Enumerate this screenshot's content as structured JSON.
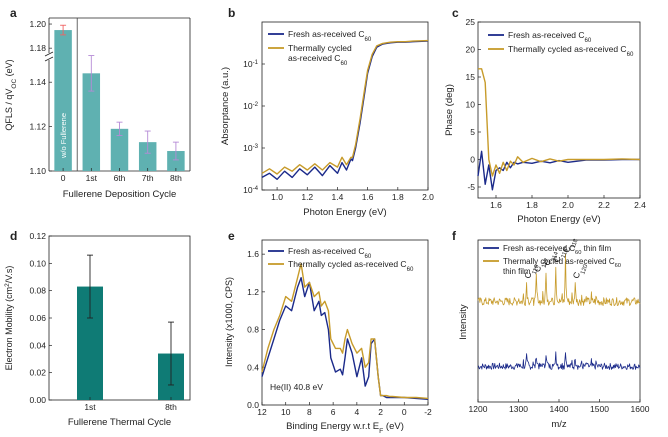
{
  "chart_data": [
    {
      "panel": "a",
      "type": "bar",
      "xlabel": "Fullerene Deposition Cycle",
      "ylabel": "QFLS / qV",
      "ylabel_sub": "OC",
      "ylabel_unit": " (eV)",
      "categories": [
        "0",
        "1st",
        "6th",
        "7th",
        "8th"
      ],
      "values": [
        1.195,
        1.144,
        1.119,
        1.113,
        1.109
      ],
      "errors": [
        0.004,
        0.008,
        0.003,
        0.005,
        0.004
      ],
      "yticks_upper": [
        "1.20",
        "1.18"
      ],
      "yticks_lower": [
        "1.14",
        "1.12",
        "1.10"
      ],
      "ylim_lower": [
        1.1,
        1.15
      ],
      "ylim_upper": [
        1.176,
        1.205
      ],
      "bar_annotation": "w/o Fullerene",
      "colors": {
        "bar": "#5fb1b1",
        "error": "#b58ad6",
        "error_first": "#f06363"
      }
    },
    {
      "panel": "b",
      "type": "line",
      "xlabel": "Photon Energy (eV)",
      "ylabel": "Absorptance (a.u.)",
      "yscale": "log",
      "xlim": [
        0.9,
        2.0
      ],
      "ylim": [
        0.0001,
        1
      ],
      "xticks": [
        "1.0",
        "1.2",
        "1.4",
        "1.6",
        "1.8",
        "2.0"
      ],
      "ytick_base": "10",
      "ytick_exponents": [
        "-4",
        "-3",
        "-2",
        "-1"
      ],
      "series": [
        {
          "name": "Fresh as-received C",
          "name_sub": "60",
          "color": "#1b2a8a",
          "x": [
            0.9,
            0.95,
            1.0,
            1.05,
            1.1,
            1.15,
            1.2,
            1.25,
            1.3,
            1.35,
            1.4,
            1.43,
            1.46,
            1.49,
            1.5,
            1.52,
            1.55,
            1.58,
            1.6,
            1.63,
            1.66,
            1.7,
            1.75,
            1.8,
            1.85,
            1.9,
            2.0
          ],
          "y": [
            0.0002,
            0.00025,
            0.00018,
            0.00028,
            0.0002,
            0.00032,
            0.00023,
            0.00035,
            0.00022,
            0.00038,
            0.00025,
            0.00045,
            0.0003,
            0.00055,
            0.0005,
            0.001,
            0.004,
            0.02,
            0.06,
            0.15,
            0.25,
            0.3,
            0.32,
            0.33,
            0.33,
            0.34,
            0.35
          ]
        },
        {
          "name": "Thermally cycled",
          "name_line2": "as-received C",
          "name_sub": "60",
          "color": "#c79b2a",
          "x": [
            0.9,
            0.95,
            1.0,
            1.05,
            1.1,
            1.15,
            1.2,
            1.25,
            1.3,
            1.35,
            1.4,
            1.43,
            1.46,
            1.49,
            1.5,
            1.52,
            1.55,
            1.58,
            1.6,
            1.63,
            1.66,
            1.7,
            1.75,
            1.8,
            1.85,
            1.9,
            2.0
          ],
          "y": [
            0.00025,
            0.00032,
            0.00024,
            0.00035,
            0.00028,
            0.0004,
            0.0003,
            0.00042,
            0.0003,
            0.00045,
            0.00035,
            0.0006,
            0.0004,
            0.0006,
            0.0006,
            0.0012,
            0.005,
            0.025,
            0.07,
            0.17,
            0.27,
            0.31,
            0.33,
            0.34,
            0.34,
            0.35,
            0.36
          ]
        }
      ]
    },
    {
      "panel": "c",
      "type": "line",
      "xlabel": "Photon Energy (eV)",
      "ylabel": "Phase (deg)",
      "xlim": [
        1.5,
        2.4
      ],
      "ylim": [
        -7,
        25
      ],
      "xticks": [
        "1.6",
        "1.8",
        "2.0",
        "2.2",
        "2.4"
      ],
      "yticks": [
        "-5",
        "0",
        "5",
        "10",
        "15",
        "20",
        "25"
      ],
      "series": [
        {
          "name": "Fresh as-received C",
          "name_sub": "60",
          "color": "#1b2a8a",
          "x": [
            1.5,
            1.52,
            1.54,
            1.56,
            1.58,
            1.6,
            1.62,
            1.64,
            1.66,
            1.68,
            1.7,
            1.72,
            1.75,
            1.8,
            1.85,
            1.9,
            1.95,
            2.0,
            2.1,
            2.2,
            2.3,
            2.4
          ],
          "y": [
            -3,
            1.5,
            -4.5,
            -1,
            -5.5,
            -2,
            -1.5,
            -2,
            -0.5,
            -1.5,
            -0.5,
            -0.8,
            -0.5,
            -0.7,
            -0.3,
            -0.6,
            -0.2,
            -0.5,
            -0.1,
            -0.1,
            0,
            0
          ]
        },
        {
          "name": "Thermally cycled as-received C",
          "name_sub": "60",
          "color": "#c79b2a",
          "x": [
            1.5,
            1.52,
            1.54,
            1.56,
            1.58,
            1.6,
            1.62,
            1.64,
            1.66,
            1.68,
            1.7,
            1.72,
            1.75,
            1.8,
            1.85,
            1.9,
            1.95,
            2.0,
            2.1,
            2.2,
            2.3,
            2.4
          ],
          "y": [
            16.5,
            16.5,
            14,
            0,
            -3,
            -1,
            -2.5,
            -0.5,
            -2,
            -0.3,
            -1,
            0.5,
            -0.5,
            0.2,
            -0.4,
            0.1,
            -0.3,
            0,
            0,
            0,
            0.1,
            0
          ]
        }
      ]
    },
    {
      "panel": "d",
      "type": "bar",
      "xlabel": "Fullerene Thermal Cycle",
      "ylabel": "Electron Mobility (cm",
      "ylabel_sup": "2",
      "ylabel_unit": "/V.s)",
      "categories": [
        "1st",
        "8th"
      ],
      "values": [
        0.083,
        0.034
      ],
      "errors": [
        0.023,
        0.023
      ],
      "ylim": [
        0,
        0.12
      ],
      "yticks": [
        "0.00",
        "0.02",
        "0.04",
        "0.06",
        "0.08",
        "0.10",
        "0.12"
      ],
      "colors": {
        "bar": "#0f7b75",
        "error": "#222222"
      }
    },
    {
      "panel": "e",
      "type": "line",
      "xlabel": "Binding Energy w.r.t E",
      "xlabel_sub": "F",
      "xlabel_unit": " (eV)",
      "ylabel": "Intensity (x1000, CPS)",
      "xlim": [
        12,
        -2
      ],
      "ylim": [
        0,
        1.75
      ],
      "xticks": [
        "12",
        "10",
        "8",
        "6",
        "4",
        "2",
        "0",
        "-2"
      ],
      "yticks": [
        "0.0",
        "0.4",
        "0.8",
        "1.2",
        "1.6"
      ],
      "annotation": "He(II) 40.8 eV",
      "series": [
        {
          "name": "Fresh as-received C",
          "name_sub": "60",
          "color": "#1b2a8a",
          "x": [
            12,
            11.5,
            11,
            10.5,
            10,
            9.5,
            9,
            8.7,
            8.4,
            8,
            7.6,
            7.2,
            7,
            6.7,
            6.4,
            6.2,
            5.8,
            5.4,
            5.2,
            5,
            4.8,
            4.4,
            4,
            3.6,
            3.3,
            3,
            2.8,
            2.5,
            2.2,
            2,
            1.8,
            1.5,
            1.2,
            1,
            0,
            -1,
            -2
          ],
          "y": [
            0.3,
            0.5,
            0.7,
            0.9,
            1.05,
            1.0,
            1.25,
            1.35,
            1.15,
            1.3,
            1.0,
            1.1,
            0.95,
            0.98,
            0.8,
            0.5,
            0.35,
            0.38,
            0.32,
            0.5,
            0.7,
            0.55,
            0.3,
            0.5,
            0.2,
            0.3,
            0.65,
            0.7,
            0.3,
            0.1,
            0.1,
            0.08,
            0.08,
            0.08,
            0.08,
            0.07,
            0.06
          ]
        },
        {
          "name": "Thermally cycled as-received C",
          "name_sub": "60",
          "color": "#c79b2a",
          "x": [
            12,
            11.5,
            11,
            10.5,
            10,
            9.5,
            9,
            8.7,
            8.4,
            8,
            7.6,
            7.2,
            7,
            6.7,
            6.4,
            6.2,
            5.8,
            5.4,
            5.2,
            5,
            4.8,
            4.4,
            4,
            3.6,
            3.3,
            3,
            2.8,
            2.5,
            2.2,
            2,
            1.8,
            1.5,
            1.2,
            1,
            0,
            -1,
            -2
          ],
          "y": [
            0.35,
            0.6,
            0.8,
            0.95,
            1.15,
            1.1,
            1.35,
            1.5,
            1.25,
            1.3,
            1.15,
            1.2,
            1.05,
            1.1,
            1.0,
            0.7,
            0.6,
            0.6,
            0.55,
            0.7,
            0.8,
            0.65,
            0.55,
            0.6,
            0.4,
            0.45,
            0.7,
            0.7,
            0.3,
            0.1,
            0.1,
            0.1,
            0.09,
            0.09,
            0.08,
            0.08,
            0.07
          ]
        }
      ]
    },
    {
      "panel": "f",
      "type": "line",
      "xlabel": "m/z",
      "ylabel": "Intensity",
      "xlim": [
        1200,
        1600
      ],
      "xticks": [
        "1200",
        "1300",
        "1400",
        "1500",
        "1600"
      ],
      "peak_labels": [
        {
          "base": "C",
          "sub": "110",
          "mz": 1320
        },
        {
          "base": "C",
          "sub": "112",
          "mz": 1344
        },
        {
          "base": "C",
          "sub": "114",
          "mz": 1368
        },
        {
          "base": "C",
          "sub": "116",
          "mz": 1392
        },
        {
          "base": "C",
          "sub": "118",
          "mz": 1416
        },
        {
          "base": "C",
          "sub": "120",
          "mz": 1440
        }
      ],
      "series": [
        {
          "name": "Fresh as-received C",
          "name_sub": "60",
          "name_tail": " thin film",
          "color": "#1b2a8a",
          "baseline": 0.22,
          "noise": 0.04,
          "peaks": [
            0.06,
            0.07,
            0.08,
            0.09,
            0.1,
            0.06
          ]
        },
        {
          "name": "Thermally cycled as-received C",
          "name_sub": "60",
          "name_line2": "thin film",
          "color": "#c79b2a",
          "baseline": 0.62,
          "noise": 0.05,
          "peaks": [
            0.12,
            0.16,
            0.2,
            0.22,
            0.28,
            0.12
          ]
        }
      ]
    }
  ]
}
